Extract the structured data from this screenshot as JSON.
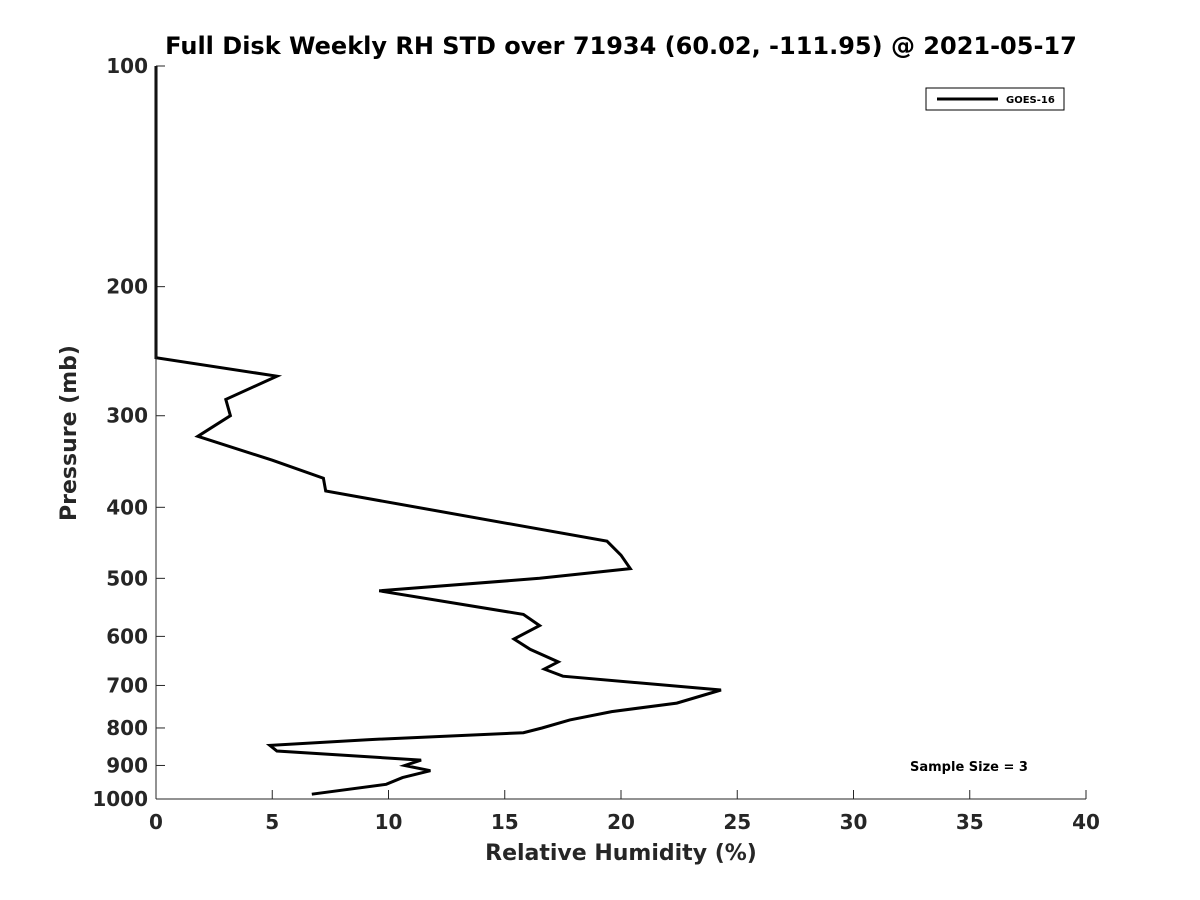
{
  "chart_data": {
    "type": "line",
    "title": "Full Disk Weekly RH STD over 71934 (60.02, -111.95) @ 2021-05-17",
    "xlabel": "Relative Humidity (%)",
    "ylabel": "Pressure (mb)",
    "xlim": [
      0,
      40
    ],
    "ylim": [
      1000,
      100
    ],
    "yscale": "log",
    "y_reversed": true,
    "xticks": [
      0,
      5,
      10,
      15,
      20,
      25,
      30,
      35,
      40
    ],
    "xtick_labels": [
      "0",
      "5",
      "10",
      "15",
      "20",
      "25",
      "30",
      "35",
      "40"
    ],
    "yticks": [
      100,
      200,
      300,
      400,
      500,
      600,
      700,
      800,
      900,
      1000
    ],
    "ytick_labels": [
      "100",
      "200",
      "300",
      "400",
      "500",
      "600",
      "700",
      "800",
      "900",
      "1000"
    ],
    "grid": false,
    "legend": {
      "position": "top-right",
      "entries": [
        "GOES-16"
      ]
    },
    "annotation": "Sample Size = 3",
    "series": [
      {
        "name": "GOES-16",
        "color": "#000000",
        "x": [
          0,
          0,
          0,
          0,
          0,
          5.2,
          3.0,
          3.2,
          1.8,
          5.0,
          7.2,
          7.3,
          19.4,
          20.0,
          20.4,
          16.5,
          9.6,
          15.8,
          16.5,
          15.4,
          16.1,
          17.3,
          16.7,
          17.5,
          24.3,
          22.4,
          19.6,
          17.8,
          16.6,
          15.8,
          9.1,
          4.9,
          5.2,
          11.4,
          10.7,
          11.8,
          10.6,
          9.9,
          6.7
        ],
        "y": [
          100,
          150,
          200,
          225,
          250,
          265,
          285,
          300,
          320,
          345,
          365,
          380,
          445,
          465,
          485,
          500,
          520,
          560,
          580,
          605,
          625,
          650,
          665,
          680,
          710,
          740,
          760,
          780,
          800,
          812,
          830,
          845,
          860,
          885,
          900,
          915,
          935,
          955,
          985
        ]
      }
    ]
  }
}
